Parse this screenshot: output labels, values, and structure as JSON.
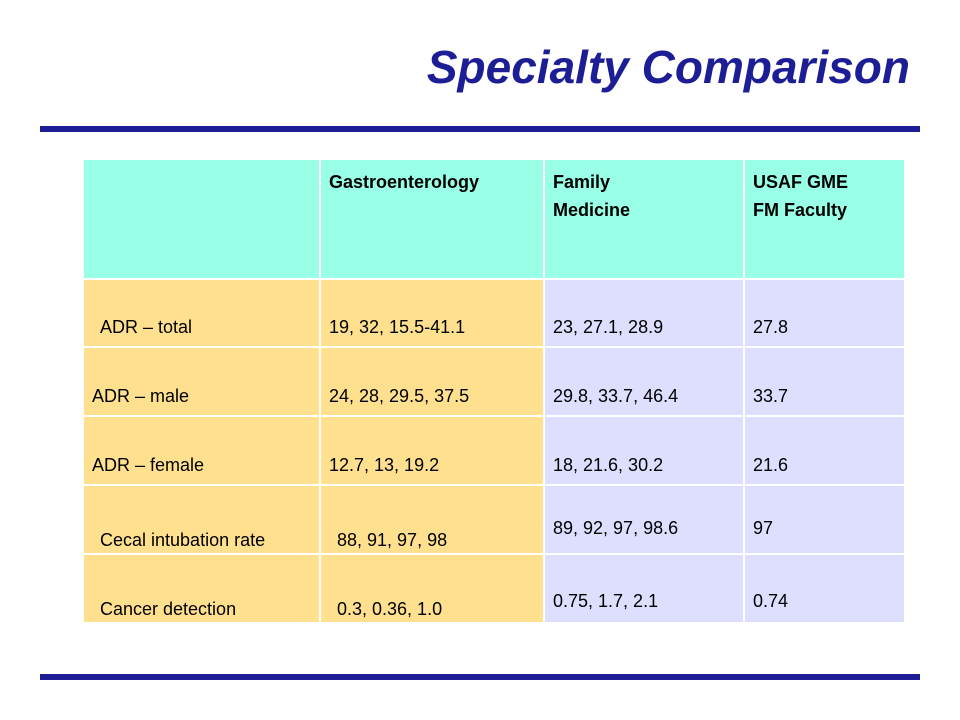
{
  "slide": {
    "title": "Specialty Comparison"
  },
  "table": {
    "headers": [
      "",
      "Gastroenterology",
      "Family Medicine",
      "USAF GME FM Faculty"
    ],
    "header_lines": {
      "col1": "Gastroenterology",
      "col2_line1": "Family",
      "col2_line2": "Medicine",
      "col3_line1": "USAF GME",
      "col3_line2": "FM Faculty"
    },
    "rows": [
      {
        "label": "ADR – total",
        "gastroenterology": "19, 32, 15.5-41.1",
        "family_medicine": "23, 27.1, 28.9",
        "usaf": "27.8"
      },
      {
        "label": "ADR – male",
        "gastroenterology": "24, 28, 29.5, 37.5",
        "family_medicine": "29.8, 33.7, 46.4",
        "usaf": "33.7"
      },
      {
        "label": "ADR – female",
        "gastroenterology": "12.7, 13, 19.2",
        "family_medicine": "18, 21.6, 30.2",
        "usaf": "21.6"
      },
      {
        "label": "Cecal intubation rate",
        "gastroenterology": "88, 91, 97, 98",
        "family_medicine": "89, 92, 97, 98.6",
        "usaf": "97"
      },
      {
        "label": "Cancer detection",
        "gastroenterology": "0.3, 0.36, 1.0",
        "family_medicine": "0.75, 1.7, 2.1",
        "usaf": "0.74"
      }
    ]
  },
  "colors": {
    "title": "#1d1d96",
    "rule": "#1d1d96",
    "header_bg": "#99ffe6",
    "label_bg": "#ffe08f",
    "value_bg": "#dedeff"
  }
}
